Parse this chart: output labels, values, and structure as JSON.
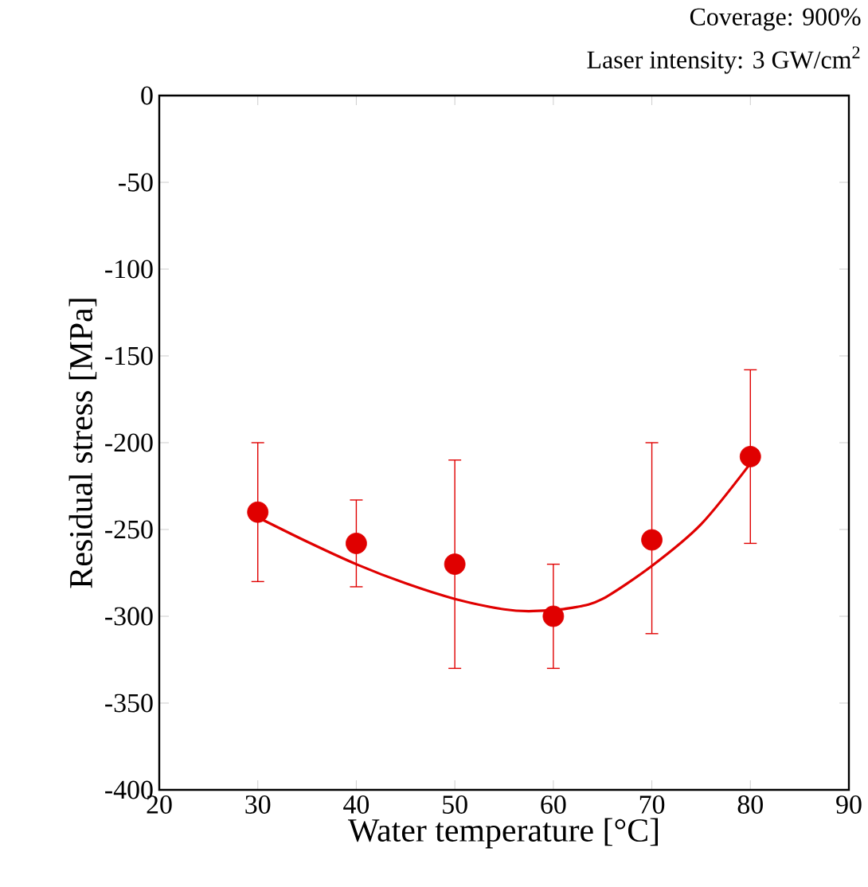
{
  "chart_data": {
    "type": "scatter",
    "xlabel": "Water temperature [°C]",
    "ylabel": "Residual stress [MPa]",
    "annotations": [
      "Coverage: 900%",
      "Laser intensity: 3 GW/cm$^{2}$"
    ],
    "xlim": [
      20,
      90
    ],
    "xticks": [
      20,
      30,
      40,
      50,
      60,
      70,
      80,
      90
    ],
    "ylim": [
      -400,
      0
    ],
    "yticks": [
      -400,
      -350,
      -300,
      -250,
      -200,
      -150,
      -100,
      -50,
      0
    ],
    "grid": false,
    "series": [
      {
        "type": "scatter",
        "color": "#e00000",
        "marker": "circle",
        "x": [
          30,
          40,
          50,
          60,
          70,
          80
        ],
        "values": [
          -240,
          -258,
          -270,
          -300,
          -256,
          -208
        ],
        "errors": [
          [
            -280,
            -200
          ],
          [
            -283,
            -233
          ],
          [
            -330,
            -210
          ],
          [
            -330,
            -270
          ],
          [
            -310,
            -200
          ],
          [
            -258,
            -158
          ]
        ]
      },
      {
        "type": "line",
        "color": "#e00000",
        "marker": "none",
        "x": [
          30,
          35,
          40,
          45,
          50,
          55,
          58,
          62,
          65,
          70,
          75,
          80
        ],
        "values": [
          -243,
          -257,
          -270,
          -281,
          -290,
          -296,
          -297,
          -295,
          -290,
          -271,
          -247,
          -212
        ]
      }
    ]
  }
}
